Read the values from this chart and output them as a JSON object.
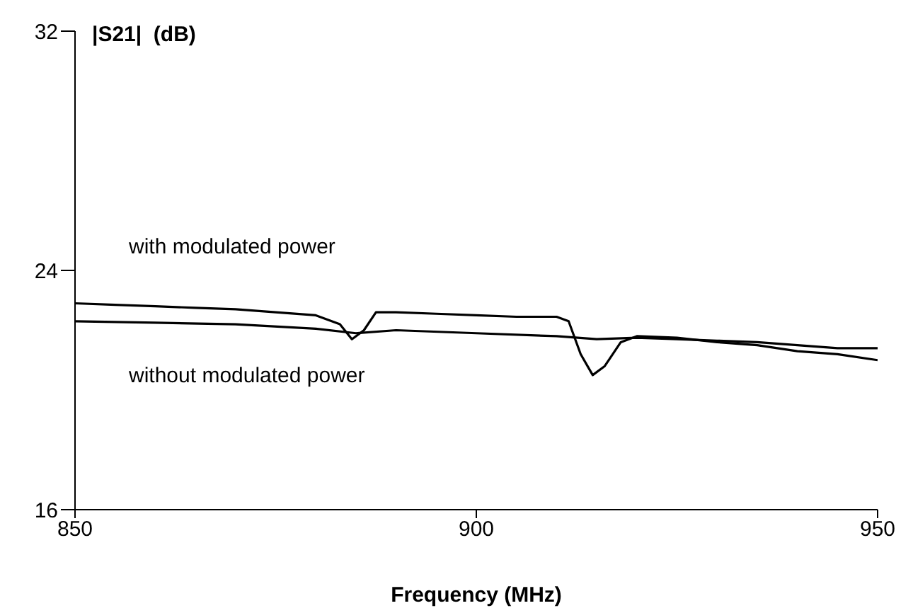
{
  "chart_data": {
    "type": "line",
    "ylabel": "|S21|  (dB)",
    "xlabel": "Frequency (MHz)",
    "xlim": [
      850,
      950
    ],
    "xticks": [
      850,
      900,
      950
    ],
    "ylim": [
      16,
      32
    ],
    "yticks": [
      16,
      24,
      32
    ],
    "grid": false,
    "legend": false,
    "marker": "none",
    "line_style": "solid",
    "series": [
      {
        "name": "with modulated power",
        "color": "#000000",
        "x": [
          850,
          855,
          860,
          865,
          870,
          875,
          880,
          883,
          884.5,
          886,
          887.5,
          890,
          895,
          900,
          905,
          910,
          911.5,
          913,
          914.5,
          916,
          918,
          920,
          925,
          930,
          935,
          940,
          945,
          950
        ],
        "values": [
          22.9,
          22.85,
          22.8,
          22.75,
          22.7,
          22.6,
          22.5,
          22.2,
          21.7,
          22.0,
          22.6,
          22.6,
          22.55,
          22.5,
          22.45,
          22.45,
          22.3,
          21.2,
          20.5,
          20.8,
          21.6,
          21.8,
          21.75,
          21.6,
          21.5,
          21.3,
          21.2,
          21.0
        ]
      },
      {
        "name": "without modulated power",
        "color": "#000000",
        "x": [
          850,
          860,
          870,
          880,
          885,
          890,
          900,
          910,
          915,
          920,
          925,
          930,
          935,
          940,
          945,
          950
        ],
        "values": [
          22.3,
          22.25,
          22.2,
          22.05,
          21.9,
          22.0,
          21.9,
          21.8,
          21.7,
          21.75,
          21.7,
          21.65,
          21.6,
          21.5,
          21.4,
          21.4
        ]
      }
    ]
  }
}
